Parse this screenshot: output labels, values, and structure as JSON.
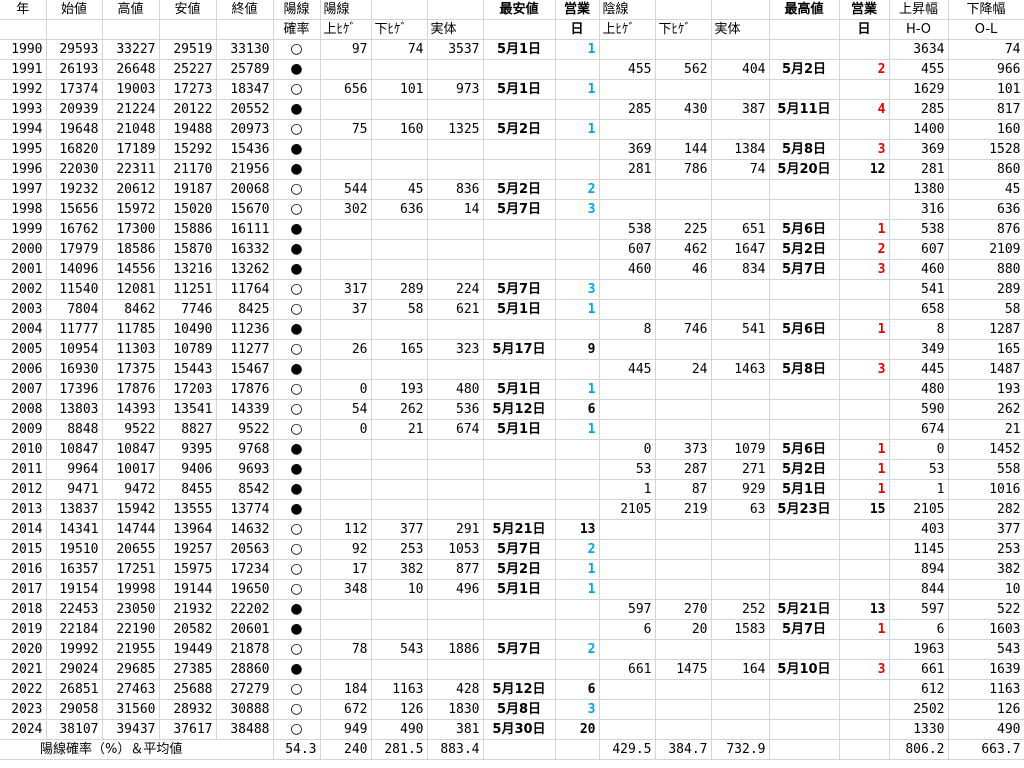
{
  "headers": {
    "row1": [
      "年",
      "始値",
      "高値",
      "安値",
      "終値",
      "陽線",
      "陽線",
      "",
      "",
      "最安値",
      "営業",
      "陰線",
      "",
      "",
      "最高値",
      "営業",
      "上昇幅",
      "下降幅"
    ],
    "row2": [
      "",
      "",
      "",
      "",
      "",
      "確率",
      "上ﾋｹﾞ",
      "下ﾋｹﾞ",
      "実体",
      "",
      "日",
      "上ﾋｹﾞ",
      "下ﾋｹﾞ",
      "実体",
      "",
      "日",
      "H-O",
      "O-L"
    ]
  },
  "symbols": {
    "yang": "○",
    "yin": "●"
  },
  "colors": {
    "blue": "#00a6e8",
    "red": "#e80000"
  },
  "rows": [
    {
      "y": "1990",
      "o": "29593",
      "h": "33227",
      "l": "29519",
      "c": "33130",
      "s": "yang",
      "yu": "97",
      "yd": "74",
      "yb": "3537",
      "ydt": "5月1日",
      "yn": "1",
      "yc": "blue",
      "nu": "",
      "nd": "",
      "nb": "",
      "ndt": "",
      "nn": "",
      "nc": "",
      "ho": "3634",
      "ol": "74"
    },
    {
      "y": "1991",
      "o": "26193",
      "h": "26648",
      "l": "25227",
      "c": "25789",
      "s": "yin",
      "yu": "",
      "yd": "",
      "yb": "",
      "ydt": "",
      "yn": "",
      "yc": "",
      "nu": "455",
      "nd": "562",
      "nb": "404",
      "ndt": "5月2日",
      "nn": "2",
      "nc": "red",
      "ho": "455",
      "ol": "966"
    },
    {
      "y": "1992",
      "o": "17374",
      "h": "19003",
      "l": "17273",
      "c": "18347",
      "s": "yang",
      "yu": "656",
      "yd": "101",
      "yb": "973",
      "ydt": "5月1日",
      "yn": "1",
      "yc": "blue",
      "nu": "",
      "nd": "",
      "nb": "",
      "ndt": "",
      "nn": "",
      "nc": "",
      "ho": "1629",
      "ol": "101"
    },
    {
      "y": "1993",
      "o": "20939",
      "h": "21224",
      "l": "20122",
      "c": "20552",
      "s": "yin",
      "yu": "",
      "yd": "",
      "yb": "",
      "ydt": "",
      "yn": "",
      "yc": "",
      "nu": "285",
      "nd": "430",
      "nb": "387",
      "ndt": "5月11日",
      "nn": "4",
      "nc": "red",
      "ho": "285",
      "ol": "817"
    },
    {
      "y": "1994",
      "o": "19648",
      "h": "21048",
      "l": "19488",
      "c": "20973",
      "s": "yang",
      "yu": "75",
      "yd": "160",
      "yb": "1325",
      "ydt": "5月2日",
      "yn": "1",
      "yc": "blue",
      "nu": "",
      "nd": "",
      "nb": "",
      "ndt": "",
      "nn": "",
      "nc": "",
      "ho": "1400",
      "ol": "160"
    },
    {
      "y": "1995",
      "o": "16820",
      "h": "17189",
      "l": "15292",
      "c": "15436",
      "s": "yin",
      "yu": "",
      "yd": "",
      "yb": "",
      "ydt": "",
      "yn": "",
      "yc": "",
      "nu": "369",
      "nd": "144",
      "nb": "1384",
      "ndt": "5月8日",
      "nn": "3",
      "nc": "red",
      "ho": "369",
      "ol": "1528"
    },
    {
      "y": "1996",
      "o": "22030",
      "h": "22311",
      "l": "21170",
      "c": "21956",
      "s": "yin",
      "yu": "",
      "yd": "",
      "yb": "",
      "ydt": "",
      "yn": "",
      "yc": "",
      "nu": "281",
      "nd": "786",
      "nb": "74",
      "ndt": "5月20日",
      "nn": "12",
      "nc": "blk",
      "ho": "281",
      "ol": "860"
    },
    {
      "y": "1997",
      "o": "19232",
      "h": "20612",
      "l": "19187",
      "c": "20068",
      "s": "yang",
      "yu": "544",
      "yd": "45",
      "yb": "836",
      "ydt": "5月2日",
      "yn": "2",
      "yc": "blue",
      "nu": "",
      "nd": "",
      "nb": "",
      "ndt": "",
      "nn": "",
      "nc": "",
      "ho": "1380",
      "ol": "45"
    },
    {
      "y": "1998",
      "o": "15656",
      "h": "15972",
      "l": "15020",
      "c": "15670",
      "s": "yang",
      "yu": "302",
      "yd": "636",
      "yb": "14",
      "ydt": "5月7日",
      "yn": "3",
      "yc": "blue",
      "nu": "",
      "nd": "",
      "nb": "",
      "ndt": "",
      "nn": "",
      "nc": "",
      "ho": "316",
      "ol": "636"
    },
    {
      "y": "1999",
      "o": "16762",
      "h": "17300",
      "l": "15886",
      "c": "16111",
      "s": "yin",
      "yu": "",
      "yd": "",
      "yb": "",
      "ydt": "",
      "yn": "",
      "yc": "",
      "nu": "538",
      "nd": "225",
      "nb": "651",
      "ndt": "5月6日",
      "nn": "1",
      "nc": "red",
      "ho": "538",
      "ol": "876"
    },
    {
      "y": "2000",
      "o": "17979",
      "h": "18586",
      "l": "15870",
      "c": "16332",
      "s": "yin",
      "yu": "",
      "yd": "",
      "yb": "",
      "ydt": "",
      "yn": "",
      "yc": "",
      "nu": "607",
      "nd": "462",
      "nb": "1647",
      "ndt": "5月2日",
      "nn": "2",
      "nc": "red",
      "ho": "607",
      "ol": "2109"
    },
    {
      "y": "2001",
      "o": "14096",
      "h": "14556",
      "l": "13216",
      "c": "13262",
      "s": "yin",
      "yu": "",
      "yd": "",
      "yb": "",
      "ydt": "",
      "yn": "",
      "yc": "",
      "nu": "460",
      "nd": "46",
      "nb": "834",
      "ndt": "5月7日",
      "nn": "3",
      "nc": "red",
      "ho": "460",
      "ol": "880"
    },
    {
      "y": "2002",
      "o": "11540",
      "h": "12081",
      "l": "11251",
      "c": "11764",
      "s": "yang",
      "yu": "317",
      "yd": "289",
      "yb": "224",
      "ydt": "5月7日",
      "yn": "3",
      "yc": "blue",
      "nu": "",
      "nd": "",
      "nb": "",
      "ndt": "",
      "nn": "",
      "nc": "",
      "ho": "541",
      "ol": "289"
    },
    {
      "y": "2003",
      "o": "7804",
      "h": "8462",
      "l": "7746",
      "c": "8425",
      "s": "yang",
      "yu": "37",
      "yd": "58",
      "yb": "621",
      "ydt": "5月1日",
      "yn": "1",
      "yc": "blue",
      "nu": "",
      "nd": "",
      "nb": "",
      "ndt": "",
      "nn": "",
      "nc": "",
      "ho": "658",
      "ol": "58"
    },
    {
      "y": "2004",
      "o": "11777",
      "h": "11785",
      "l": "10490",
      "c": "11236",
      "s": "yin",
      "yu": "",
      "yd": "",
      "yb": "",
      "ydt": "",
      "yn": "",
      "yc": "",
      "nu": "8",
      "nd": "746",
      "nb": "541",
      "ndt": "5月6日",
      "nn": "1",
      "nc": "red",
      "ho": "8",
      "ol": "1287"
    },
    {
      "y": "2005",
      "o": "10954",
      "h": "11303",
      "l": "10789",
      "c": "11277",
      "s": "yang",
      "yu": "26",
      "yd": "165",
      "yb": "323",
      "ydt": "5月17日",
      "yn": "9",
      "yc": "blk",
      "nu": "",
      "nd": "",
      "nb": "",
      "ndt": "",
      "nn": "",
      "nc": "",
      "ho": "349",
      "ol": "165"
    },
    {
      "y": "2006",
      "o": "16930",
      "h": "17375",
      "l": "15443",
      "c": "15467",
      "s": "yin",
      "yu": "",
      "yd": "",
      "yb": "",
      "ydt": "",
      "yn": "",
      "yc": "",
      "nu": "445",
      "nd": "24",
      "nb": "1463",
      "ndt": "5月8日",
      "nn": "3",
      "nc": "red",
      "ho": "445",
      "ol": "1487"
    },
    {
      "y": "2007",
      "o": "17396",
      "h": "17876",
      "l": "17203",
      "c": "17876",
      "s": "yang",
      "yu": "0",
      "yd": "193",
      "yb": "480",
      "ydt": "5月1日",
      "yn": "1",
      "yc": "blue",
      "nu": "",
      "nd": "",
      "nb": "",
      "ndt": "",
      "nn": "",
      "nc": "",
      "ho": "480",
      "ol": "193"
    },
    {
      "y": "2008",
      "o": "13803",
      "h": "14393",
      "l": "13541",
      "c": "14339",
      "s": "yang",
      "yu": "54",
      "yd": "262",
      "yb": "536",
      "ydt": "5月12日",
      "yn": "6",
      "yc": "blk",
      "nu": "",
      "nd": "",
      "nb": "",
      "ndt": "",
      "nn": "",
      "nc": "",
      "ho": "590",
      "ol": "262"
    },
    {
      "y": "2009",
      "o": "8848",
      "h": "9522",
      "l": "8827",
      "c": "9522",
      "s": "yang",
      "yu": "0",
      "yd": "21",
      "yb": "674",
      "ydt": "5月1日",
      "yn": "1",
      "yc": "blue",
      "nu": "",
      "nd": "",
      "nb": "",
      "ndt": "",
      "nn": "",
      "nc": "",
      "ho": "674",
      "ol": "21"
    },
    {
      "y": "2010",
      "o": "10847",
      "h": "10847",
      "l": "9395",
      "c": "9768",
      "s": "yin",
      "yu": "",
      "yd": "",
      "yb": "",
      "ydt": "",
      "yn": "",
      "yc": "",
      "nu": "0",
      "nd": "373",
      "nb": "1079",
      "ndt": "5月6日",
      "nn": "1",
      "nc": "red",
      "ho": "0",
      "ol": "1452"
    },
    {
      "y": "2011",
      "o": "9964",
      "h": "10017",
      "l": "9406",
      "c": "9693",
      "s": "yin",
      "yu": "",
      "yd": "",
      "yb": "",
      "ydt": "",
      "yn": "",
      "yc": "",
      "nu": "53",
      "nd": "287",
      "nb": "271",
      "ndt": "5月2日",
      "nn": "1",
      "nc": "red",
      "ho": "53",
      "ol": "558"
    },
    {
      "y": "2012",
      "o": "9471",
      "h": "9472",
      "l": "8455",
      "c": "8542",
      "s": "yin",
      "yu": "",
      "yd": "",
      "yb": "",
      "ydt": "",
      "yn": "",
      "yc": "",
      "nu": "1",
      "nd": "87",
      "nb": "929",
      "ndt": "5月1日",
      "nn": "1",
      "nc": "red",
      "ho": "1",
      "ol": "1016"
    },
    {
      "y": "2013",
      "o": "13837",
      "h": "15942",
      "l": "13555",
      "c": "13774",
      "s": "yin",
      "yu": "",
      "yd": "",
      "yb": "",
      "ydt": "",
      "yn": "",
      "yc": "",
      "nu": "2105",
      "nd": "219",
      "nb": "63",
      "ndt": "5月23日",
      "nn": "15",
      "nc": "blk",
      "ho": "2105",
      "ol": "282"
    },
    {
      "y": "2014",
      "o": "14341",
      "h": "14744",
      "l": "13964",
      "c": "14632",
      "s": "yang",
      "yu": "112",
      "yd": "377",
      "yb": "291",
      "ydt": "5月21日",
      "yn": "13",
      "yc": "blk",
      "nu": "",
      "nd": "",
      "nb": "",
      "ndt": "",
      "nn": "",
      "nc": "",
      "ho": "403",
      "ol": "377"
    },
    {
      "y": "2015",
      "o": "19510",
      "h": "20655",
      "l": "19257",
      "c": "20563",
      "s": "yang",
      "yu": "92",
      "yd": "253",
      "yb": "1053",
      "ydt": "5月7日",
      "yn": "2",
      "yc": "blue",
      "nu": "",
      "nd": "",
      "nb": "",
      "ndt": "",
      "nn": "",
      "nc": "",
      "ho": "1145",
      "ol": "253"
    },
    {
      "y": "2016",
      "o": "16357",
      "h": "17251",
      "l": "15975",
      "c": "17234",
      "s": "yang",
      "yu": "17",
      "yd": "382",
      "yb": "877",
      "ydt": "5月2日",
      "yn": "1",
      "yc": "blue",
      "nu": "",
      "nd": "",
      "nb": "",
      "ndt": "",
      "nn": "",
      "nc": "",
      "ho": "894",
      "ol": "382"
    },
    {
      "y": "2017",
      "o": "19154",
      "h": "19998",
      "l": "19144",
      "c": "19650",
      "s": "yang",
      "yu": "348",
      "yd": "10",
      "yb": "496",
      "ydt": "5月1日",
      "yn": "1",
      "yc": "blue",
      "nu": "",
      "nd": "",
      "nb": "",
      "ndt": "",
      "nn": "",
      "nc": "",
      "ho": "844",
      "ol": "10"
    },
    {
      "y": "2018",
      "o": "22453",
      "h": "23050",
      "l": "21932",
      "c": "22202",
      "s": "yin",
      "yu": "",
      "yd": "",
      "yb": "",
      "ydt": "",
      "yn": "",
      "yc": "",
      "nu": "597",
      "nd": "270",
      "nb": "252",
      "ndt": "5月21日",
      "nn": "13",
      "nc": "blk",
      "ho": "597",
      "ol": "522"
    },
    {
      "y": "2019",
      "o": "22184",
      "h": "22190",
      "l": "20582",
      "c": "20601",
      "s": "yin",
      "yu": "",
      "yd": "",
      "yb": "",
      "ydt": "",
      "yn": "",
      "yc": "",
      "nu": "6",
      "nd": "20",
      "nb": "1583",
      "ndt": "5月7日",
      "nn": "1",
      "nc": "red",
      "ho": "6",
      "ol": "1603"
    },
    {
      "y": "2020",
      "o": "19992",
      "h": "21955",
      "l": "19449",
      "c": "21878",
      "s": "yang",
      "yu": "78",
      "yd": "543",
      "yb": "1886",
      "ydt": "5月7日",
      "yn": "2",
      "yc": "blue",
      "nu": "",
      "nd": "",
      "nb": "",
      "ndt": "",
      "nn": "",
      "nc": "",
      "ho": "1963",
      "ol": "543"
    },
    {
      "y": "2021",
      "o": "29024",
      "h": "29685",
      "l": "27385",
      "c": "28860",
      "s": "yin",
      "yu": "",
      "yd": "",
      "yb": "",
      "ydt": "",
      "yn": "",
      "yc": "",
      "nu": "661",
      "nd": "1475",
      "nb": "164",
      "ndt": "5月10日",
      "nn": "3",
      "nc": "red",
      "ho": "661",
      "ol": "1639"
    },
    {
      "y": "2022",
      "o": "26851",
      "h": "27463",
      "l": "25688",
      "c": "27279",
      "s": "yang",
      "yu": "184",
      "yd": "1163",
      "yb": "428",
      "ydt": "5月12日",
      "yn": "6",
      "yc": "blk",
      "nu": "",
      "nd": "",
      "nb": "",
      "ndt": "",
      "nn": "",
      "nc": "",
      "ho": "612",
      "ol": "1163"
    },
    {
      "y": "2023",
      "o": "29058",
      "h": "31560",
      "l": "28932",
      "c": "30888",
      "s": "yang",
      "yu": "672",
      "yd": "126",
      "yb": "1830",
      "ydt": "5月8日",
      "yn": "3",
      "yc": "blue",
      "nu": "",
      "nd": "",
      "nb": "",
      "ndt": "",
      "nn": "",
      "nc": "",
      "ho": "2502",
      "ol": "126"
    },
    {
      "y": "2024",
      "o": "38107",
      "h": "39437",
      "l": "37617",
      "c": "38488",
      "s": "yang",
      "yu": "949",
      "yd": "490",
      "yb": "381",
      "ydt": "5月30日",
      "yn": "20",
      "yc": "blk",
      "nu": "",
      "nd": "",
      "nb": "",
      "ndt": "",
      "nn": "",
      "nc": "",
      "ho": "1330",
      "ol": "490"
    }
  ],
  "footer": {
    "label": "陽線確率（%）＆平均値",
    "prob": "54.3",
    "yu": "240",
    "yd": "281.5",
    "yb": "883.4",
    "nu": "429.5",
    "nd": "384.7",
    "nb": "732.9",
    "ho": "806.2",
    "ol": "663.7"
  }
}
